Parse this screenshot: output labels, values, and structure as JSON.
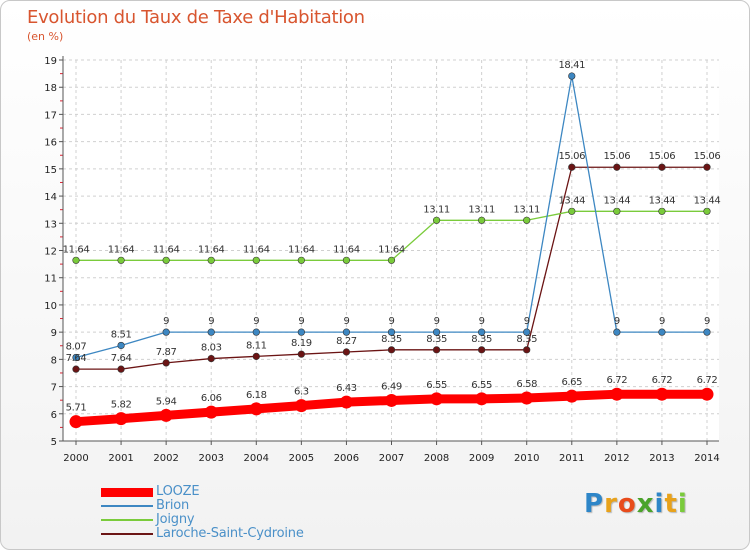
{
  "chart_data": {
    "type": "line",
    "title": "Evolution du Taux de Taxe d'Habitation",
    "subtitle": "(en %)",
    "x": [
      "2000",
      "2001",
      "2002",
      "2003",
      "2004",
      "2005",
      "2006",
      "2007",
      "2008",
      "2009",
      "2010",
      "2011",
      "2012",
      "2013",
      "2014"
    ],
    "ylim": [
      5,
      19
    ],
    "yticks": [
      "5",
      "6",
      "7",
      "8",
      "9",
      "10",
      "11",
      "12",
      "13",
      "14",
      "15",
      "16",
      "17",
      "18",
      "19"
    ],
    "grid": "dashed",
    "legend_position": "bottom-left",
    "series": [
      {
        "name": "LOOZE",
        "color": "#ff0000",
        "values": [
          5.71,
          5.82,
          5.94,
          6.06,
          6.18,
          6.3,
          6.43,
          6.49,
          6.55,
          6.55,
          6.58,
          6.65,
          6.72,
          6.72,
          6.72
        ],
        "labels": [
          "5.71",
          "5.82",
          "5.94",
          "6.06",
          "6.18",
          "6.3",
          "6.43",
          "6.49",
          "6.55",
          "6.55",
          "6.58",
          "6.65",
          "6.72",
          "6.72",
          "6.72"
        ]
      },
      {
        "name": "Brion",
        "color": "#3d87c2",
        "values": [
          8.07,
          8.51,
          9,
          9,
          9,
          9,
          9,
          9,
          9,
          9,
          9,
          18.41,
          9,
          9,
          9
        ],
        "labels": [
          "8.07",
          "8.51",
          "9",
          "9",
          "9",
          "9",
          "9",
          "9",
          "9",
          "9",
          "9",
          "18.41",
          "9",
          "9",
          "9"
        ]
      },
      {
        "name": "Joigny",
        "color": "#7acb3b",
        "values": [
          11.64,
          11.64,
          11.64,
          11.64,
          11.64,
          11.64,
          11.64,
          11.64,
          13.11,
          13.11,
          13.11,
          13.44,
          13.44,
          13.44,
          13.44
        ],
        "labels": [
          "11.64",
          "11.64",
          "11.64",
          "11.64",
          "11.64",
          "11.64",
          "11.64",
          "11.64",
          "13.11",
          "13.11",
          "13.11",
          "13.44",
          "13.44",
          "13.44",
          "13.44"
        ]
      },
      {
        "name": "Laroche-Saint-Cydroine",
        "color": "#6b1414",
        "values": [
          7.64,
          7.64,
          7.87,
          8.03,
          8.11,
          8.19,
          8.27,
          8.35,
          8.35,
          8.35,
          8.35,
          15.06,
          15.06,
          15.06,
          15.06
        ],
        "labels": [
          "7.64",
          "7.64",
          "7.87",
          "8.03",
          "8.11",
          "8.19",
          "8.27",
          "8.35",
          "8.35",
          "8.35",
          "8.35",
          "15.06",
          "15.06",
          "15.06",
          "15.06"
        ]
      }
    ]
  },
  "logo": {
    "letters": [
      {
        "ch": "P",
        "color": "#2e86c8"
      },
      {
        "ch": "r",
        "color": "#e8a21b"
      },
      {
        "ch": "o",
        "color": "#e84b1b"
      },
      {
        "ch": "x",
        "color": "#4aa32a"
      },
      {
        "ch": "i",
        "color": "#2e86c8"
      },
      {
        "ch": "t",
        "color": "#e8a21b"
      },
      {
        "ch": "i",
        "color": "#7acb3b"
      }
    ]
  }
}
